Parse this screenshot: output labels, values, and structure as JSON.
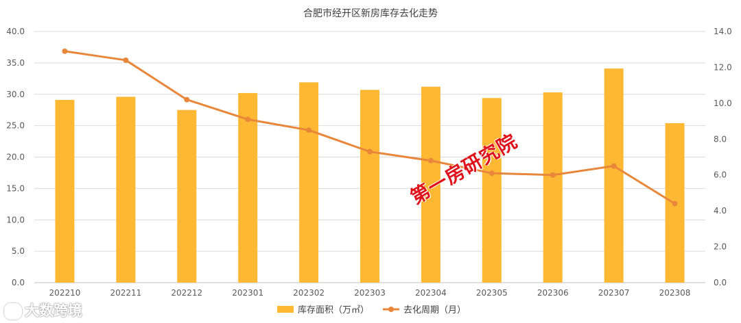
{
  "chart_data": {
    "type": "bar+line",
    "title": "合肥市经开区新房库存去化走势",
    "categories": [
      "202210",
      "202211",
      "202212",
      "202301",
      "202302",
      "202303",
      "202304",
      "202305",
      "202306",
      "202307",
      "202308"
    ],
    "series": [
      {
        "name": "库存面积（万㎡）",
        "type": "bar",
        "axis": "left",
        "color": "#FFB833",
        "values": [
          29.1,
          29.6,
          27.5,
          30.2,
          31.9,
          30.7,
          31.2,
          29.4,
          30.3,
          34.1,
          25.4
        ]
      },
      {
        "name": "去化周期（月）",
        "type": "line",
        "axis": "right",
        "color": "#E8863A",
        "values": [
          12.9,
          12.4,
          10.2,
          9.1,
          8.5,
          7.3,
          6.8,
          6.1,
          6.0,
          6.5,
          4.4
        ]
      }
    ],
    "y_left": {
      "min": 0,
      "max": 40,
      "step": 5,
      "ticks": [
        "0.0",
        "5.0",
        "10.0",
        "15.0",
        "20.0",
        "25.0",
        "30.0",
        "35.0",
        "40.0"
      ]
    },
    "y_right": {
      "min": 0,
      "max": 14,
      "step": 2,
      "ticks": [
        "0.0",
        "2.0",
        "4.0",
        "6.0",
        "8.0",
        "10.0",
        "12.0",
        "14.0"
      ]
    },
    "grid": true,
    "legend_position": "bottom"
  },
  "watermark": "第一房研究院",
  "logo_text": "大数跨境"
}
